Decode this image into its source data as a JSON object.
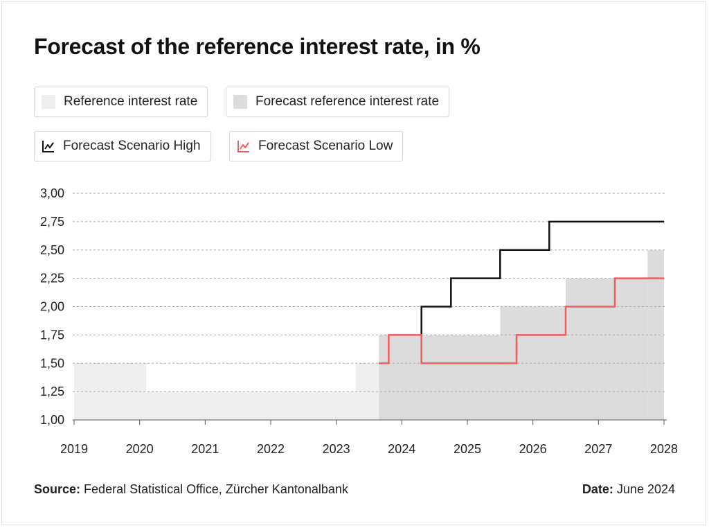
{
  "title": "Forecast of the reference interest rate, in %",
  "legend": [
    {
      "label": "Reference interest rate",
      "kind": "swatch",
      "color": "#efefef"
    },
    {
      "label": "Forecast reference interest rate",
      "kind": "swatch",
      "color": "#dcdcdc"
    },
    {
      "label": "Forecast Scenario High",
      "kind": "line-icon",
      "color": "#111111"
    },
    {
      "label": "Forecast Scenario Low",
      "kind": "line-icon",
      "color": "#f25c5c"
    }
  ],
  "footer": {
    "source_label": "Source:",
    "source_text": "Federal Statistical Office, Zürcher Kantonalbank",
    "date_label": "Date:",
    "date_text": "June 2024"
  },
  "chart_data": {
    "type": "area",
    "x_axis": {
      "min": 2019,
      "max": 2028,
      "ticks": [
        "2019",
        "2020",
        "2021",
        "2022",
        "2023",
        "2024",
        "2025",
        "2026",
        "2027",
        "2028"
      ]
    },
    "y_axis": {
      "min": 1.0,
      "max": 3.0,
      "ticks": [
        "1,00",
        "1,25",
        "1,50",
        "1,75",
        "2,00",
        "2,25",
        "2,50",
        "2,75",
        "3,00"
      ]
    },
    "grid": "horizontal-dashed",
    "series": [
      {
        "name": "Reference interest rate",
        "kind": "step-area",
        "color": "#efefef",
        "steps": [
          {
            "from": 2019.0,
            "to": 2020.1,
            "value": 1.5
          },
          {
            "from": 2020.1,
            "to": 2023.3,
            "value": 1.25
          },
          {
            "from": 2023.3,
            "to": 2023.65,
            "value": 1.5
          }
        ]
      },
      {
        "name": "Forecast reference interest rate",
        "kind": "step-area",
        "color": "#dcdcdc",
        "steps": [
          {
            "from": 2023.65,
            "to": 2025.5,
            "value": 1.75
          },
          {
            "from": 2025.5,
            "to": 2026.5,
            "value": 2.0
          },
          {
            "from": 2026.5,
            "to": 2027.75,
            "value": 2.25
          },
          {
            "from": 2027.75,
            "to": 2028.0,
            "value": 2.5
          }
        ]
      },
      {
        "name": "Forecast Scenario High",
        "kind": "step-line",
        "color": "#111111",
        "points": [
          [
            2024.3,
            1.75
          ],
          [
            2024.3,
            2.0
          ],
          [
            2024.75,
            2.0
          ],
          [
            2024.75,
            2.25
          ],
          [
            2025.5,
            2.25
          ],
          [
            2025.5,
            2.5
          ],
          [
            2026.25,
            2.5
          ],
          [
            2026.25,
            2.75
          ],
          [
            2028.0,
            2.75
          ]
        ]
      },
      {
        "name": "Forecast Scenario Low",
        "kind": "step-line",
        "color": "#f25c5c",
        "points": [
          [
            2023.65,
            1.5
          ],
          [
            2023.8,
            1.5
          ],
          [
            2023.8,
            1.75
          ],
          [
            2024.3,
            1.75
          ],
          [
            2024.3,
            1.5
          ],
          [
            2025.75,
            1.5
          ],
          [
            2025.75,
            1.75
          ],
          [
            2026.5,
            1.75
          ],
          [
            2026.5,
            2.0
          ],
          [
            2027.25,
            2.0
          ],
          [
            2027.25,
            2.25
          ],
          [
            2028.0,
            2.25
          ]
        ]
      }
    ]
  }
}
